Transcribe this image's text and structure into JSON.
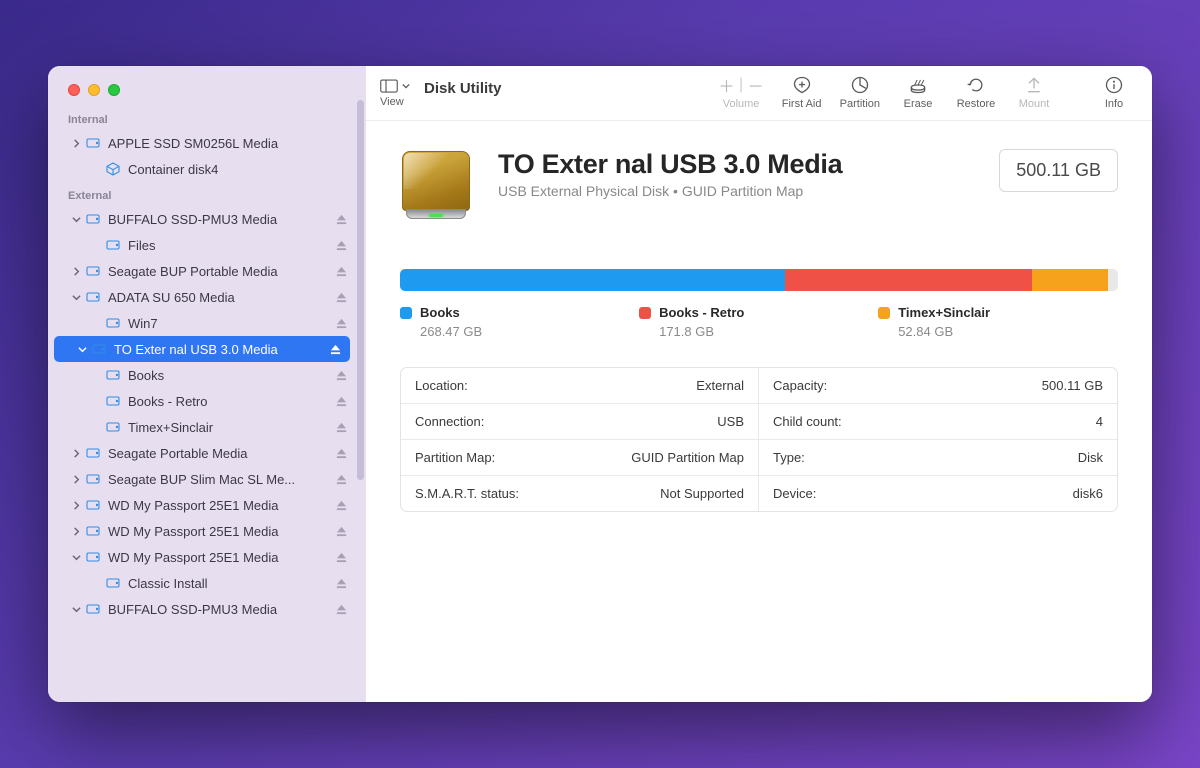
{
  "app_title": "Disk Utility",
  "toolbar": {
    "view_label": "View",
    "volume_label": "Volume",
    "first_aid_label": "First Aid",
    "partition_label": "Partition",
    "erase_label": "Erase",
    "restore_label": "Restore",
    "mount_label": "Mount",
    "info_label": "Info"
  },
  "sidebar": {
    "sections": [
      {
        "label": "Internal",
        "rows": [
          {
            "indent": 0,
            "disclosure": "right",
            "icon": "disk",
            "label": "APPLE SSD SM0256L Media"
          },
          {
            "indent": 1,
            "disclosure": "none",
            "icon": "container",
            "label": "Container disk4"
          }
        ]
      },
      {
        "label": "External",
        "rows": [
          {
            "indent": 0,
            "disclosure": "down",
            "icon": "disk",
            "label": "BUFFALO SSD-PMU3 Media",
            "eject": true
          },
          {
            "indent": 1,
            "disclosure": "none",
            "icon": "disk",
            "label": "Files",
            "eject": true
          },
          {
            "indent": 0,
            "disclosure": "right",
            "icon": "disk",
            "label": "Seagate BUP Portable Media",
            "eject": true
          },
          {
            "indent": 0,
            "disclosure": "down",
            "icon": "disk",
            "label": "ADATA SU 650 Media",
            "eject": true
          },
          {
            "indent": 1,
            "disclosure": "none",
            "icon": "disk",
            "label": "Win7",
            "eject": true
          },
          {
            "indent": 0,
            "disclosure": "down",
            "icon": "disk",
            "label": "TO Exter nal USB 3.0 Media",
            "eject": true,
            "selected": true
          },
          {
            "indent": 1,
            "disclosure": "none",
            "icon": "disk",
            "label": "Books",
            "eject": true
          },
          {
            "indent": 1,
            "disclosure": "none",
            "icon": "disk",
            "label": "Books - Retro",
            "eject": true
          },
          {
            "indent": 1,
            "disclosure": "none",
            "icon": "disk",
            "label": "Timex+Sinclair",
            "eject": true
          },
          {
            "indent": 0,
            "disclosure": "right",
            "icon": "disk",
            "label": "Seagate Portable Media",
            "eject": true
          },
          {
            "indent": 0,
            "disclosure": "right",
            "icon": "disk",
            "label": "Seagate BUP Slim Mac SL Me...",
            "eject": true
          },
          {
            "indent": 0,
            "disclosure": "right",
            "icon": "disk",
            "label": "WD My Passport 25E1 Media",
            "eject": true
          },
          {
            "indent": 0,
            "disclosure": "right",
            "icon": "disk",
            "label": "WD My Passport 25E1 Media",
            "eject": true
          },
          {
            "indent": 0,
            "disclosure": "down",
            "icon": "disk",
            "label": "WD My Passport 25E1 Media",
            "eject": true
          },
          {
            "indent": 1,
            "disclosure": "none",
            "icon": "disk",
            "label": "Classic Install",
            "eject": true
          },
          {
            "indent": 0,
            "disclosure": "down",
            "icon": "disk",
            "label": "BUFFALO SSD-PMU3 Media",
            "eject": true
          }
        ]
      }
    ]
  },
  "detail": {
    "title": "TO Exter nal USB 3.0 Media",
    "subtitle": "USB External Physical Disk • GUID Partition Map",
    "size_badge": "500.11 GB",
    "usage": {
      "segments": [
        {
          "name": "Books",
          "size_label": "268.47 GB",
          "gb": 268.47,
          "color": "#1e9af0"
        },
        {
          "name": "Books - Retro",
          "size_label": "171.8 GB",
          "gb": 171.8,
          "color": "#ef5146"
        },
        {
          "name": "Timex+Sinclair",
          "size_label": "52.84 GB",
          "gb": 52.84,
          "color": "#f6a21c"
        }
      ],
      "total_gb": 500.11
    },
    "info": [
      {
        "k": "Location:",
        "v": "External"
      },
      {
        "k": "Capacity:",
        "v": "500.11 GB"
      },
      {
        "k": "Connection:",
        "v": "USB"
      },
      {
        "k": "Child count:",
        "v": "4"
      },
      {
        "k": "Partition Map:",
        "v": "GUID Partition Map"
      },
      {
        "k": "Type:",
        "v": "Disk"
      },
      {
        "k": "S.M.A.R.T. status:",
        "v": "Not Supported"
      },
      {
        "k": "Device:",
        "v": "disk6"
      }
    ]
  }
}
